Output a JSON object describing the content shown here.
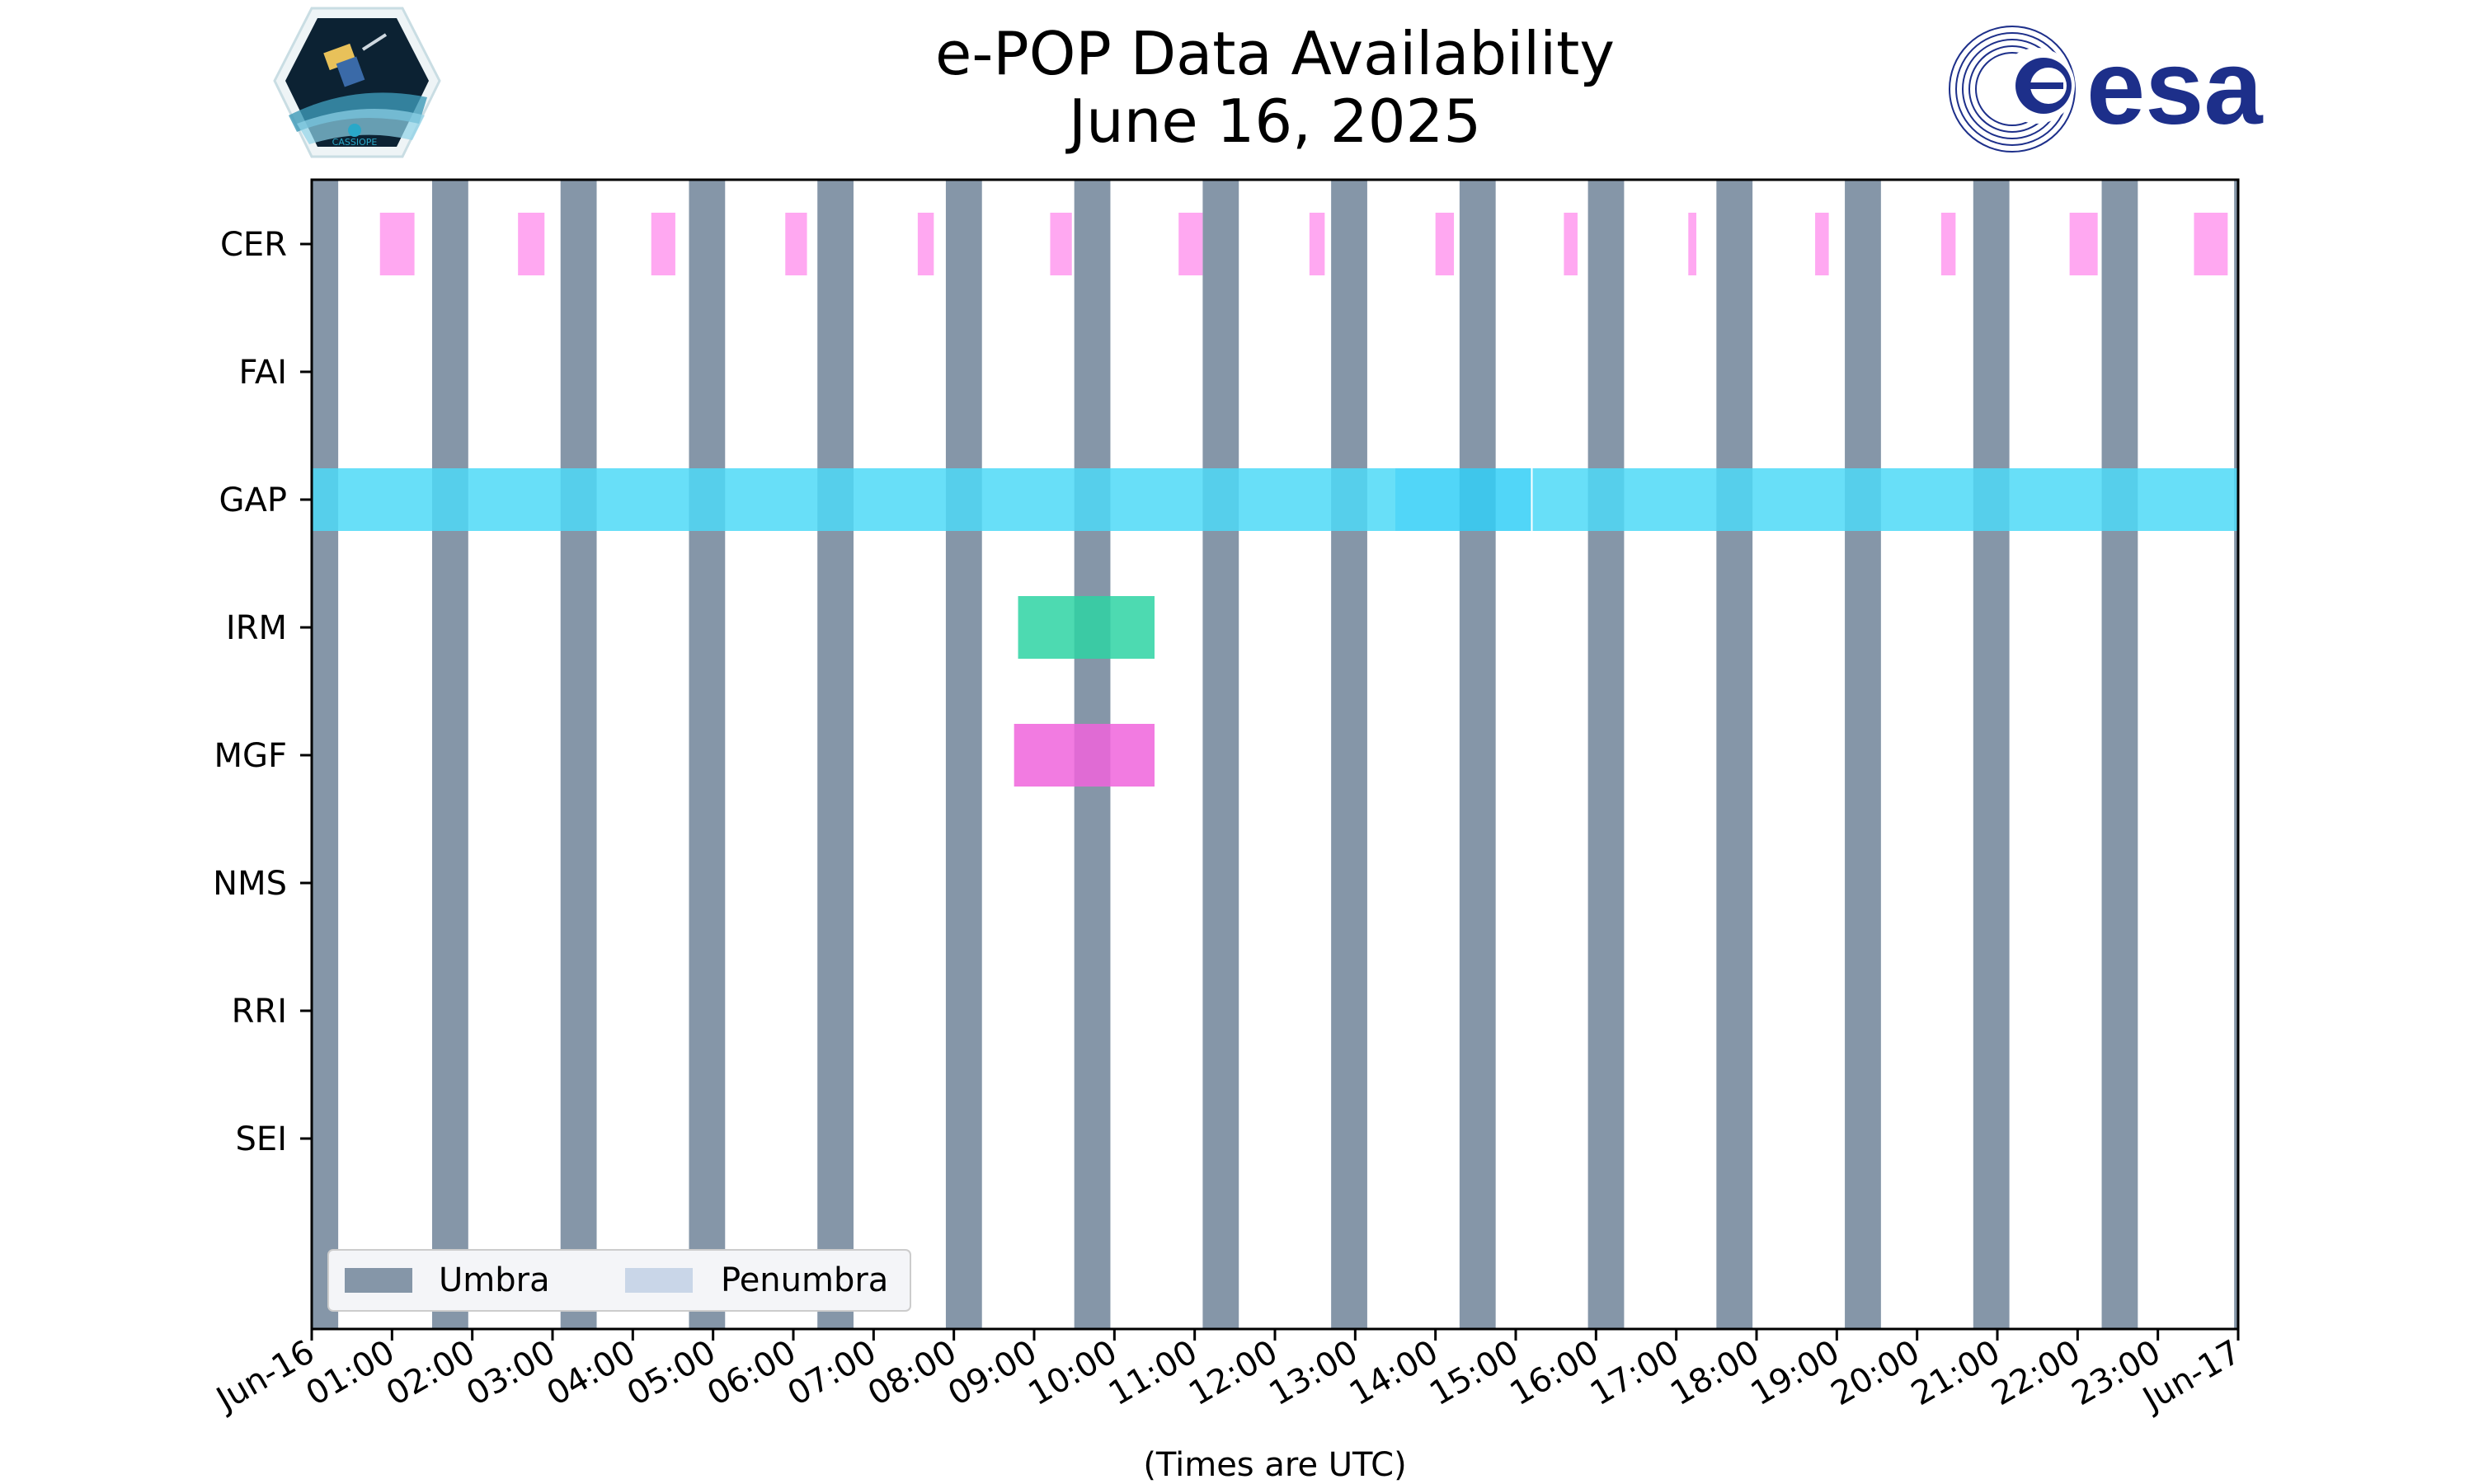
{
  "chart_data": {
    "type": "timeline",
    "title": "e-POP Data Availability",
    "subtitle": "June 16, 2025",
    "xlabel": "(Times are UTC)",
    "xlim": [
      0,
      24
    ],
    "x_tick_values": [
      0,
      1,
      2,
      3,
      4,
      5,
      6,
      7,
      8,
      9,
      10,
      11,
      12,
      13,
      14,
      15,
      16,
      17,
      18,
      19,
      20,
      21,
      22,
      23,
      24
    ],
    "x_tick_labels": [
      "Jun-16",
      "01:00",
      "02:00",
      "03:00",
      "04:00",
      "05:00",
      "06:00",
      "07:00",
      "08:00",
      "09:00",
      "10:00",
      "11:00",
      "12:00",
      "13:00",
      "14:00",
      "15:00",
      "16:00",
      "17:00",
      "18:00",
      "19:00",
      "20:00",
      "21:00",
      "22:00",
      "23:00",
      "Jun-17"
    ],
    "instruments": [
      "CER",
      "FAI",
      "GAP",
      "IRM",
      "MGF",
      "NMS",
      "RRI",
      "SEI"
    ],
    "umbra_hours": [
      [
        0.0,
        0.33
      ],
      [
        1.5,
        1.95
      ],
      [
        3.1,
        3.55
      ],
      [
        4.7,
        5.15
      ],
      [
        6.3,
        6.75
      ],
      [
        7.9,
        8.35
      ],
      [
        9.5,
        9.95
      ],
      [
        11.1,
        11.55
      ],
      [
        12.7,
        13.15
      ],
      [
        14.3,
        14.75
      ],
      [
        15.9,
        16.35
      ],
      [
        17.5,
        17.95
      ],
      [
        19.1,
        19.55
      ],
      [
        20.7,
        21.15
      ],
      [
        22.3,
        22.75
      ],
      [
        23.95,
        24.0
      ]
    ],
    "availability": [
      {
        "name": "CER",
        "color": "#ff99ee",
        "intervals": [
          [
            0.85,
            1.28
          ],
          [
            2.57,
            2.9
          ],
          [
            4.23,
            4.53
          ],
          [
            5.9,
            6.17
          ],
          [
            7.55,
            7.75
          ],
          [
            9.2,
            9.47
          ],
          [
            10.8,
            11.1
          ],
          [
            12.43,
            12.62
          ],
          [
            14.0,
            14.23
          ],
          [
            15.6,
            15.77
          ],
          [
            17.15,
            17.25
          ],
          [
            18.73,
            18.9
          ],
          [
            20.3,
            20.48
          ],
          [
            21.9,
            22.25
          ],
          [
            23.45,
            23.87
          ]
        ]
      },
      {
        "name": "FAI",
        "color": "#ffffff",
        "intervals": []
      },
      {
        "name": "GAP",
        "color": "#4dd9f7",
        "intervals": [
          [
            0.0,
            13.5
          ],
          [
            13.5,
            15.2
          ],
          [
            15.2,
            24.0
          ]
        ],
        "alt_color": "#33cff7"
      },
      {
        "name": "IRM",
        "color": "#2ed3a3",
        "intervals": [
          [
            8.8,
            10.5
          ]
        ]
      },
      {
        "name": "MGF",
        "color": "#f064dc",
        "intervals": [
          [
            8.75,
            10.5
          ]
        ]
      },
      {
        "name": "NMS",
        "color": "#ffffff",
        "intervals": []
      },
      {
        "name": "RRI",
        "color": "#ffffff",
        "intervals": []
      },
      {
        "name": "SEI",
        "color": "#ffffff",
        "intervals": []
      }
    ],
    "legend": {
      "placement": "lower-left",
      "entries": [
        {
          "label": "Umbra",
          "color": "#8596a8"
        },
        {
          "label": "Penumbra",
          "color": "#c9d6e8"
        }
      ]
    },
    "grid": false
  },
  "logos": {
    "left": "CASSIOPE",
    "right": "esa"
  },
  "colors": {
    "umbra": "#8596a8",
    "penumbra": "#c9d6e8",
    "esa_blue": "#1d2f8a",
    "badge_teal": "#2aa8c8"
  }
}
